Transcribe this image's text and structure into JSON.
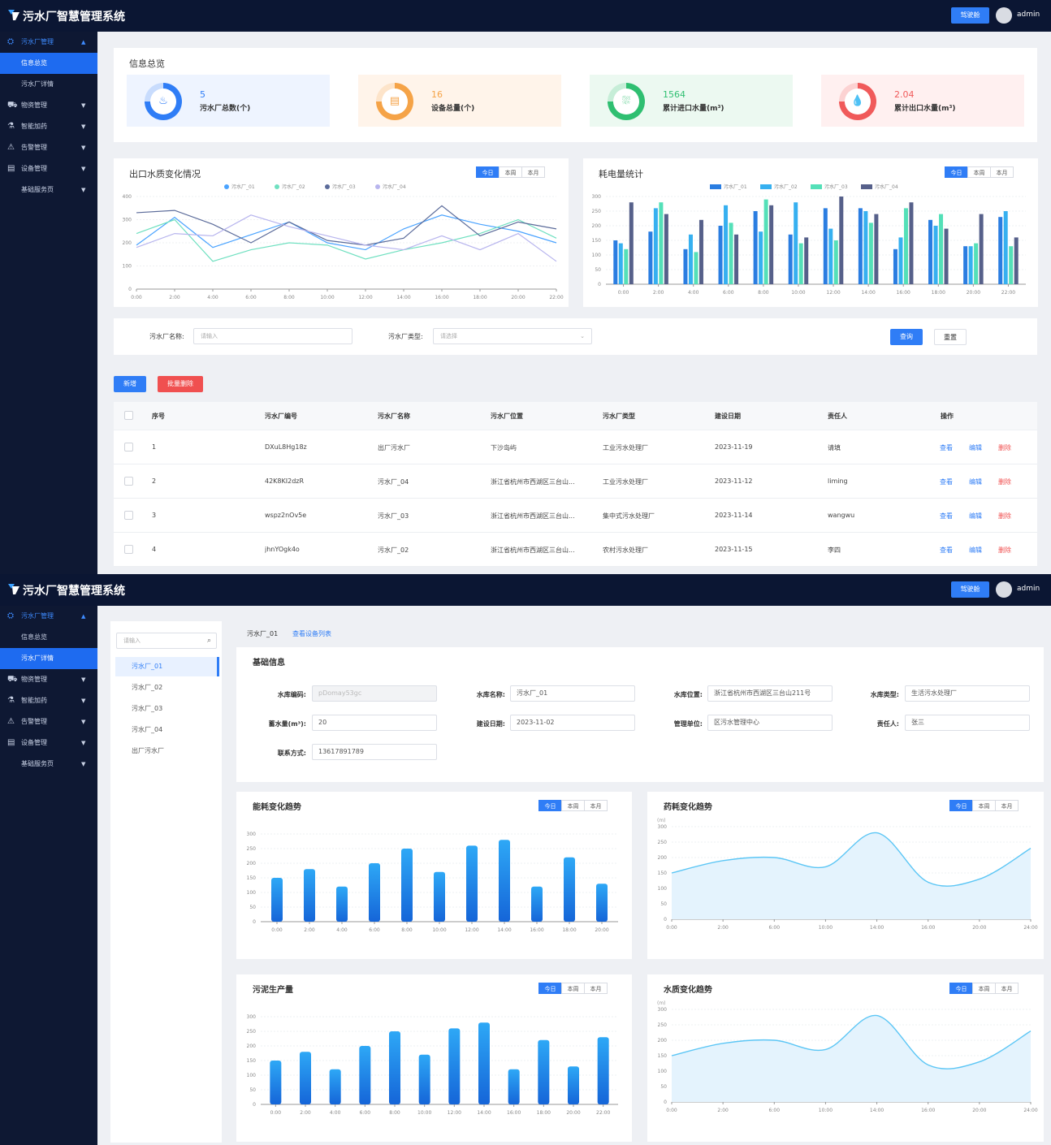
{
  "app": {
    "title": "污水厂智慧管理系统",
    "top_button": "驾驶舱",
    "user": "admin"
  },
  "sidebar": {
    "items": [
      {
        "icon": "plant-icon",
        "label": "污水厂管理",
        "arrow": "▲",
        "state": "open"
      },
      {
        "icon": "",
        "label": "信息总览",
        "sub": true
      },
      {
        "icon": "",
        "label": "污水厂详情",
        "sub": true
      },
      {
        "icon": "cart-icon",
        "label": "物资管理",
        "arrow": "▼"
      },
      {
        "icon": "flask-icon",
        "label": "智能加药",
        "arrow": "▼"
      },
      {
        "icon": "warning-icon",
        "label": "告警管理",
        "arrow": "▼"
      },
      {
        "icon": "device-icon",
        "label": "设备管理",
        "arrow": "▼"
      },
      {
        "icon": "",
        "label": "基础服务页",
        "arrow": "▼"
      }
    ]
  },
  "overview": {
    "title": "信息总览",
    "stats": [
      {
        "value": "5",
        "label": "污水厂总数(个)",
        "color": "#2f7df6",
        "bg": "#eef4ff",
        "icon": "plant-icon",
        "glyph": "♨"
      },
      {
        "value": "16",
        "label": "设备总量(个)",
        "color": "#f5a347",
        "bg": "#fff4ea",
        "icon": "device-icon",
        "glyph": "▤"
      },
      {
        "value": "1564",
        "label": "累计进口水量(m³)",
        "color": "#2fbf71",
        "bg": "#ecf9f1",
        "icon": "inlet-icon",
        "glyph": "⛆"
      },
      {
        "value": "2.04",
        "label": "累计出口水量(m³)",
        "color": "#f05a5a",
        "bg": "#fff0f0",
        "icon": "outlet-icon",
        "glyph": "💧"
      }
    ]
  },
  "range_tabs": [
    "今日",
    "本周",
    "本月"
  ],
  "charts_top": {
    "water_quality": {
      "type": "line",
      "title": "出口水质变化情况",
      "categories": [
        "0:00",
        "2:00",
        "4:00",
        "6:00",
        "8:00",
        "10:00",
        "12:00",
        "14:00",
        "16:00",
        "18:00",
        "20:00",
        "22:00"
      ],
      "ylim": [
        0,
        400
      ],
      "yticks": [
        "0",
        "100",
        "200",
        "300",
        "400"
      ],
      "series": [
        {
          "name": "污水厂_01",
          "color": "#4aa3ff",
          "values": [
            190,
            310,
            180,
            235,
            290,
            200,
            170,
            260,
            320,
            280,
            250,
            200
          ]
        },
        {
          "name": "污水厂_02",
          "color": "#6fe0c0",
          "values": [
            240,
            300,
            120,
            170,
            200,
            190,
            130,
            170,
            200,
            240,
            300,
            220
          ]
        },
        {
          "name": "污水厂_03",
          "color": "#5b6b9a",
          "values": [
            330,
            340,
            280,
            200,
            290,
            210,
            190,
            220,
            360,
            230,
            290,
            260
          ]
        },
        {
          "name": "污水厂_04",
          "color": "#b8b5ee",
          "values": [
            180,
            240,
            230,
            320,
            270,
            230,
            190,
            170,
            230,
            170,
            240,
            120
          ]
        }
      ]
    },
    "power": {
      "type": "bar",
      "title": "耗电量统计",
      "categories": [
        "0:00",
        "2:00",
        "4:00",
        "6:00",
        "8:00",
        "10:00",
        "12:00",
        "14:00",
        "16:00",
        "18:00",
        "20:00",
        "22:00"
      ],
      "ylim": [
        0,
        300
      ],
      "yticks": [
        "0",
        "50",
        "100",
        "150",
        "200",
        "250",
        "300"
      ],
      "series": [
        {
          "name": "污水厂_01",
          "color": "#2a7de1",
          "values": [
            150,
            180,
            120,
            200,
            250,
            170,
            260,
            260,
            120,
            220,
            130,
            230
          ]
        },
        {
          "name": "污水厂_02",
          "color": "#36b0f0",
          "values": [
            140,
            260,
            170,
            270,
            180,
            280,
            190,
            250,
            160,
            200,
            130,
            250
          ]
        },
        {
          "name": "污水厂_03",
          "color": "#54e0b8",
          "values": [
            120,
            280,
            110,
            210,
            290,
            140,
            150,
            210,
            260,
            240,
            140,
            130
          ]
        },
        {
          "name": "污水厂_04",
          "color": "#56608a",
          "values": [
            280,
            240,
            220,
            170,
            270,
            160,
            300,
            240,
            280,
            190,
            240,
            160
          ]
        }
      ]
    }
  },
  "filter": {
    "name_label": "污水厂名称:",
    "name_placeholder": "请输入",
    "type_label": "污水厂类型:",
    "type_placeholder": "请选择",
    "search": "查询",
    "reset": "重置"
  },
  "actions": {
    "add": "新增",
    "batch_delete": "批量删除"
  },
  "table": {
    "columns": [
      "序号",
      "污水厂编号",
      "污水厂名称",
      "污水厂位置",
      "污水厂类型",
      "建设日期",
      "责任人",
      "操作"
    ],
    "rows": [
      {
        "no": "1",
        "code": "DXuL8Hg18z",
        "name": "出厂污水厂",
        "location": "下沙岛屿",
        "type": "工业污水处理厂",
        "date": "2023-11-19",
        "owner": "请填"
      },
      {
        "no": "2",
        "code": "42K8KI2dzR",
        "name": "污水厂_04",
        "location": "浙江省杭州市西湖区三台山...",
        "type": "工业污水处理厂",
        "date": "2023-11-12",
        "owner": "liming"
      },
      {
        "no": "3",
        "code": "wspz2nOv5e",
        "name": "污水厂_03",
        "location": "浙江省杭州市西湖区三台山...",
        "type": "集中式污水处理厂",
        "date": "2023-11-14",
        "owner": "wangwu"
      },
      {
        "no": "4",
        "code": "jhnYOgk4o",
        "name": "污水厂_02",
        "location": "浙江省杭州市西湖区三台山...",
        "type": "农村污水处理厂",
        "date": "2023-11-15",
        "owner": "李四"
      }
    ],
    "ops": {
      "view": "查看",
      "edit": "编辑",
      "delete": "删除"
    }
  },
  "detail": {
    "search_placeholder": "请输入",
    "tree": [
      "污水厂_01",
      "污水厂_02",
      "污水厂_03",
      "污水厂_04",
      "出厂污水厂"
    ],
    "breadcrumb": "污水厂_01",
    "breadcrumb_link": "查看设备列表",
    "basic_title": "基础信息",
    "fields": [
      {
        "label": "水库编码:",
        "value": "pDomay53gc",
        "disabled": true
      },
      {
        "label": "水库名称:",
        "value": "污水厂_01"
      },
      {
        "label": "水库位置:",
        "value": "浙江省杭州市西湖区三台山211号"
      },
      {
        "label": "水库类型:",
        "value": "生活污水处理厂"
      },
      {
        "label": "蓄水量(m³):",
        "value": "20"
      },
      {
        "label": "建设日期:",
        "value": "2023-11-02"
      },
      {
        "label": "管理单位:",
        "value": "区污水管理中心"
      },
      {
        "label": "责任人:",
        "value": "张三"
      },
      {
        "label": "联系方式:",
        "value": "13617891789"
      }
    ]
  },
  "charts_bottom": {
    "energy": {
      "type": "bar",
      "title": "能耗变化趋势",
      "categories": [
        "0:00",
        "2:00",
        "4:00",
        "6:00",
        "8:00",
        "10:00",
        "12:00",
        "14:00",
        "16:00",
        "18:00",
        "20:00"
      ],
      "ylim": [
        0,
        300
      ],
      "yticks": [
        "0",
        "50",
        "100",
        "150",
        "200",
        "250",
        "300"
      ],
      "values": [
        150,
        180,
        120,
        200,
        250,
        170,
        260,
        280,
        120,
        220,
        130
      ]
    },
    "chem": {
      "type": "area",
      "title": "药耗变化趋势",
      "unit": "(m)",
      "x": [
        "0:00",
        "2:00",
        "6:00",
        "10:00",
        "14:00",
        "16:00",
        "20:00",
        "24:00"
      ],
      "ylim": [
        0,
        300
      ],
      "yticks": [
        "0",
        "50",
        "100",
        "150",
        "200",
        "250",
        "300"
      ],
      "values": [
        150,
        190,
        200,
        170,
        280,
        120,
        130,
        230
      ]
    },
    "sludge": {
      "type": "bar",
      "title": "污泥生产量",
      "categories": [
        "0:00",
        "2:00",
        "4:00",
        "6:00",
        "8:00",
        "10:00",
        "12:00",
        "14:00",
        "16:00",
        "18:00",
        "20:00",
        "22:00"
      ],
      "ylim": [
        0,
        300
      ],
      "yticks": [
        "0",
        "50",
        "100",
        "150",
        "200",
        "250",
        "300"
      ],
      "values": [
        150,
        180,
        120,
        200,
        250,
        170,
        260,
        280,
        120,
        220,
        130,
        230
      ]
    },
    "quality": {
      "type": "area",
      "title": "水质变化趋势",
      "unit": "(m)",
      "x": [
        "0:00",
        "2:00",
        "6:00",
        "10:00",
        "14:00",
        "16:00",
        "20:00",
        "24:00"
      ],
      "ylim": [
        0,
        300
      ],
      "yticks": [
        "0",
        "50",
        "100",
        "150",
        "200",
        "250",
        "300"
      ],
      "values": [
        150,
        190,
        200,
        170,
        280,
        120,
        130,
        230
      ]
    }
  }
}
